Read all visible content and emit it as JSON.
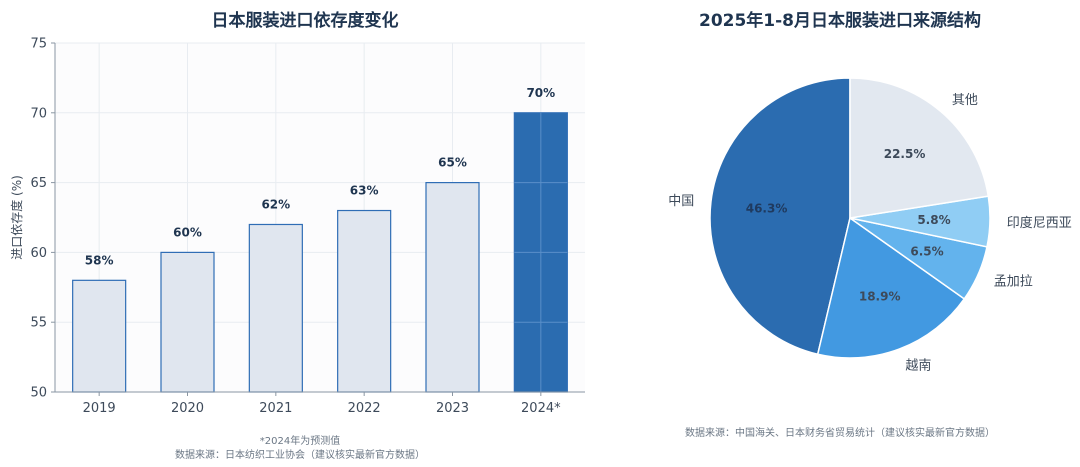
{
  "chart_data": [
    {
      "type": "bar",
      "title": "日本服装进口依存度变化",
      "xlabel": "",
      "ylabel": "进口依存度 (%)",
      "categories": [
        "2019",
        "2020",
        "2021",
        "2022",
        "2023",
        "2024*"
      ],
      "values": [
        58,
        60,
        62,
        63,
        65,
        70
      ],
      "data_labels": [
        "58%",
        "60%",
        "62%",
        "63%",
        "65%",
        "70%"
      ],
      "ylim": [
        50,
        75
      ],
      "yticks": [
        "50",
        "55",
        "60",
        "65",
        "70",
        "75"
      ],
      "grid": true,
      "highlight_index": 5,
      "colors": {
        "bar": "#e0e6ef",
        "bar_edge": "#2f6db5",
        "highlight": "#2b6cb0",
        "label": "#1f3550"
      },
      "notes": [
        "*2024年为预测值",
        "数据来源：日本纺织工业协会（建议核实最新官方数据）"
      ]
    },
    {
      "type": "pie",
      "title": "2025年1-8月日本服装进口来源结构",
      "slices": [
        {
          "label": "中国",
          "value": 46.3,
          "pct_label": "46.3%",
          "color": "#2b6cb0"
        },
        {
          "label": "越南",
          "value": 18.9,
          "pct_label": "18.9%",
          "color": "#4299e1"
        },
        {
          "label": "孟加拉",
          "value": 6.5,
          "pct_label": "6.5%",
          "color": "#63b3ed"
        },
        {
          "label": "印度尼西亚",
          "value": 5.8,
          "pct_label": "5.8%",
          "color": "#90cdf4"
        },
        {
          "label": "其他",
          "value": 22.5,
          "pct_label": "22.5%",
          "color": "#e2e8f0"
        }
      ],
      "note": "数据来源：中国海关、日本财务省贸易统计（建议核实最新官方数据）"
    }
  ]
}
